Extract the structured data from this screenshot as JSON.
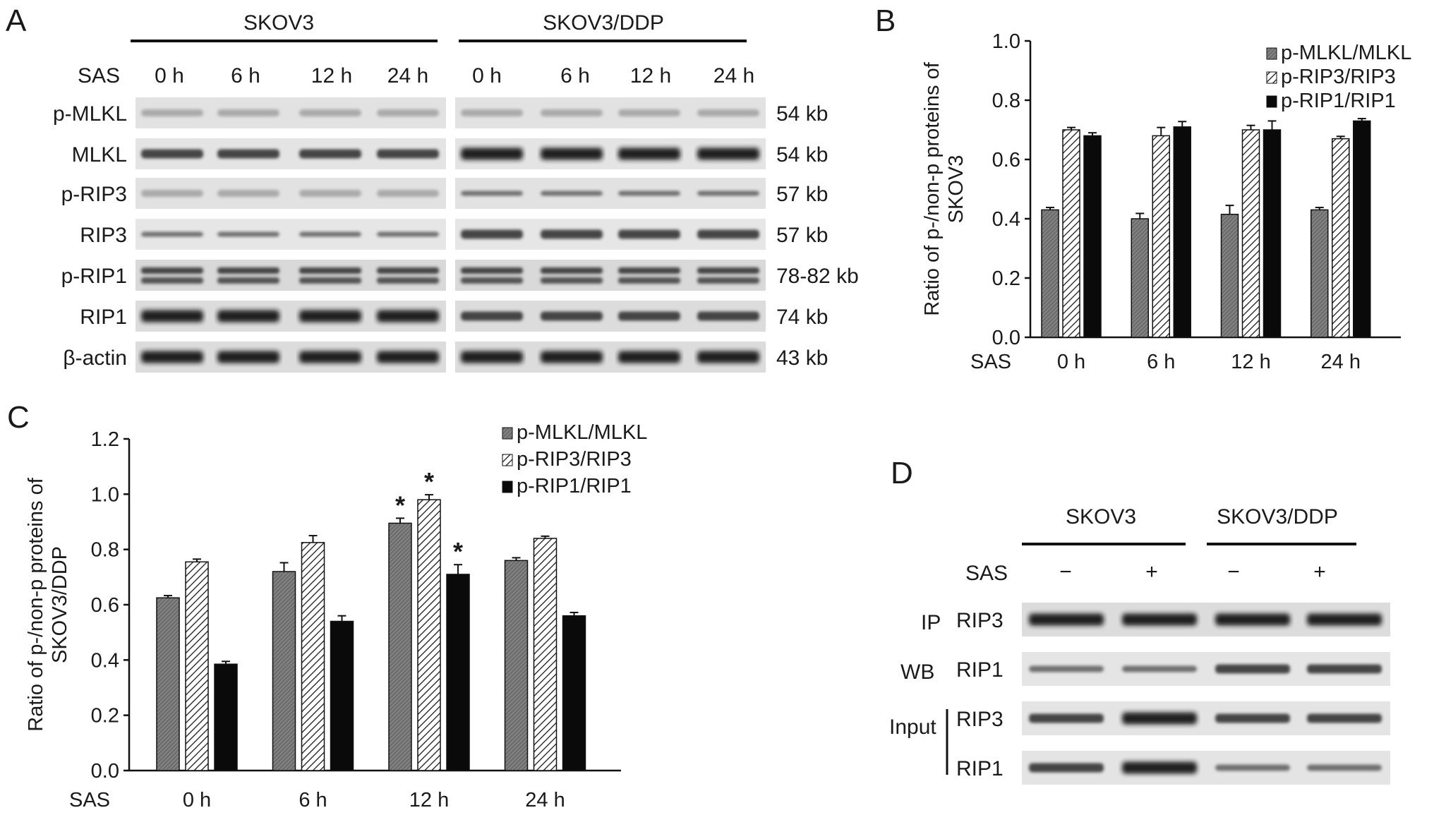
{
  "panelA": {
    "letter": "A",
    "groups": [
      "SKOV3",
      "SKOV3/DDP"
    ],
    "sas_label": "SAS",
    "times": [
      "0 h",
      "6 h",
      "12 h",
      "24 h"
    ],
    "rows": [
      {
        "label": "p-MLKL",
        "size": "54 kb",
        "style": "faint"
      },
      {
        "label": "MLKL",
        "size": "54 kb",
        "style": "mid"
      },
      {
        "label": "p-RIP3",
        "size": "57 kb",
        "style": "faint"
      },
      {
        "label": "RIP3",
        "size": "57 kb",
        "style": "thin"
      },
      {
        "label": "p-RIP1",
        "size": "78-82 kb",
        "style": "double"
      },
      {
        "label": "RIP1",
        "size": "74 kb",
        "style": "strong"
      },
      {
        "label": "β-actin",
        "size": "43 kb",
        "style": "strong"
      }
    ]
  },
  "panelB": {
    "letter": "B",
    "chart_data": {
      "type": "bar",
      "ylabel": "Ratio of p-/non-p proteins of SKOV3",
      "ylabel_lines": [
        "Ratio of p-/non-p proteins of",
        "SKOV3"
      ],
      "xlabel": "SAS",
      "categories": [
        "0 h",
        "6 h",
        "12 h",
        "24 h"
      ],
      "ylim": [
        0,
        1.0
      ],
      "yticks": [
        "0.0",
        "0.2",
        "0.4",
        "0.6",
        "0.8",
        "1.0"
      ],
      "legend_position": "top-right",
      "series": [
        {
          "name": "p-MLKL/MLKL",
          "values": [
            0.43,
            0.4,
            0.415,
            0.43
          ],
          "errors": [
            0.008,
            0.018,
            0.03,
            0.008
          ],
          "pattern": "gray"
        },
        {
          "name": "p-RIP3/RIP3",
          "values": [
            0.7,
            0.68,
            0.7,
            0.67
          ],
          "errors": [
            0.008,
            0.028,
            0.015,
            0.008
          ],
          "pattern": "hatch"
        },
        {
          "name": "p-RIP1/RIP1",
          "values": [
            0.68,
            0.71,
            0.7,
            0.73
          ],
          "errors": [
            0.01,
            0.018,
            0.03,
            0.008
          ],
          "pattern": "black"
        }
      ]
    }
  },
  "panelC": {
    "letter": "C",
    "chart_data": {
      "type": "bar",
      "ylabel": "Ratio of p-/non-p proteins of SKOV3/DDP",
      "ylabel_lines": [
        "Ratio of p-/non-p proteins of",
        "SKOV3/DDP"
      ],
      "xlabel": "SAS",
      "categories": [
        "0 h",
        "6 h",
        "12 h",
        "24 h"
      ],
      "ylim": [
        0,
        1.2
      ],
      "yticks": [
        "0.0",
        "0.2",
        "0.4",
        "0.6",
        "0.8",
        "1.0",
        "1.2"
      ],
      "legend_position": "top-center",
      "significance_mark": "*",
      "series": [
        {
          "name": "p-MLKL/MLKL",
          "values": [
            0.625,
            0.72,
            0.895,
            0.76
          ],
          "errors": [
            0.008,
            0.032,
            0.018,
            0.01
          ],
          "significant": [
            false,
            false,
            true,
            false
          ],
          "pattern": "gray"
        },
        {
          "name": "p-RIP3/RIP3",
          "values": [
            0.755,
            0.825,
            0.98,
            0.84
          ],
          "errors": [
            0.01,
            0.025,
            0.018,
            0.008
          ],
          "significant": [
            false,
            false,
            true,
            false
          ],
          "pattern": "hatch"
        },
        {
          "name": "p-RIP1/RIP1",
          "values": [
            0.385,
            0.54,
            0.71,
            0.56
          ],
          "errors": [
            0.01,
            0.02,
            0.035,
            0.012
          ],
          "significant": [
            false,
            false,
            true,
            false
          ],
          "pattern": "black"
        }
      ]
    }
  },
  "panelD": {
    "letter": "D",
    "groups": [
      "SKOV3",
      "SKOV3/DDP"
    ],
    "sas_label": "SAS",
    "treatments": [
      "−",
      "+",
      "−",
      "+"
    ],
    "ip_label": "IP",
    "wb_label": "WB",
    "input_label": "Input",
    "rows": [
      {
        "label": "RIP3",
        "style": "strong"
      },
      {
        "label": "RIP1",
        "style": "faintmid"
      },
      {
        "label": "RIP3",
        "style": "mid"
      },
      {
        "label": "RIP1",
        "style": "mid"
      }
    ]
  }
}
